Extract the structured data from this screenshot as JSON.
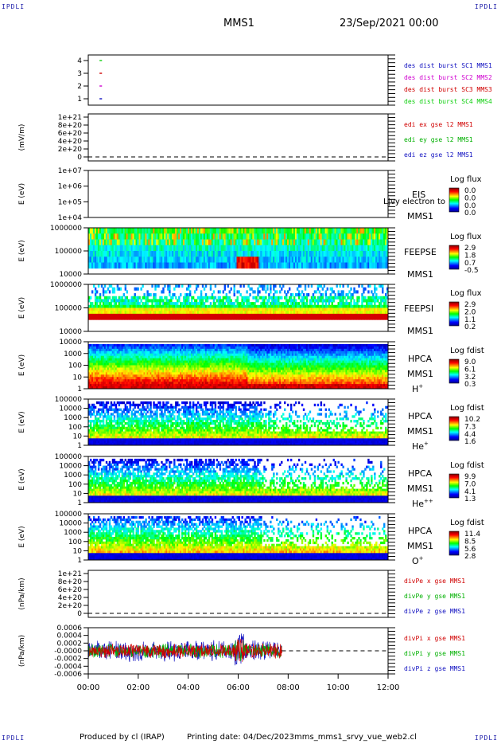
{
  "corners": {
    "top_left": "IPDLI",
    "top_right": "IPDLI",
    "bottom_left": "IPDLI",
    "bottom_right": "IPDLI"
  },
  "header": {
    "title": "MMS1",
    "datetime": "23/Sep/2021 00:00"
  },
  "footer": {
    "produced": "Produced by cl (IRAP)",
    "printing": "Printing date: 04/Dec/2023",
    "file": "mms_mms1_srvy_vue_web2.cl"
  },
  "colors": {
    "red": "#d00000",
    "green": "#00b000",
    "blue": "#1010c0",
    "magenta": "#d000d0",
    "lime": "#10d010"
  },
  "chart_data": [
    {
      "type": "line",
      "id": "sc-burst",
      "y_ticks": [
        "4",
        "3",
        "2",
        "1"
      ],
      "legend": [
        {
          "label": "des dist burst SC1 MMS1",
          "color": "#1010c0"
        },
        {
          "label": "des dist burst SC2 MMS2",
          "color": "#d000d0"
        },
        {
          "label": "des dist burst SC3 MMS3",
          "color": "#d00000"
        },
        {
          "label": "des dist burst SC4 MMS4",
          "color": "#10d010"
        }
      ],
      "series": [
        {
          "y": 4,
          "x_start": "00:27",
          "x_end": "00:33",
          "color": "#10d010"
        },
        {
          "y": 3,
          "x_start": "00:27",
          "x_end": "00:33",
          "color": "#d00000"
        },
        {
          "y": 2,
          "x_start": "00:27",
          "x_end": "00:33",
          "color": "#d000d0"
        },
        {
          "y": 1,
          "x_start": "00:27",
          "x_end": "00:33",
          "color": "#1010c0"
        }
      ]
    },
    {
      "type": "line",
      "id": "edi-e",
      "ylabel": "(mV/m)",
      "y_ticks": [
        "1e+21",
        "8e+20",
        "6e+20",
        "4e+20",
        "2e+20",
        "0"
      ],
      "dashed_zero": true,
      "legend": [
        {
          "label": "edi ex gse l2 MMS1",
          "color": "#d00000"
        },
        {
          "label": "edi ey gse l2 MMS1",
          "color": "#00b000"
        },
        {
          "label": "edi ez gse l2 MMS1",
          "color": "#1010c0"
        }
      ]
    },
    {
      "type": "heatmap",
      "id": "eis",
      "ylabel": "E (eV)",
      "y_ticks": [
        "1e+07",
        "1e+06",
        "1e+05",
        "1e+04"
      ],
      "side": [
        "EIS",
        "MMS1"
      ],
      "overlay_text": "L|vy electron to",
      "colorbar": {
        "title": "Log flux",
        "values": [
          "0.0",
          "0.0",
          "0.0",
          "0.0"
        ]
      }
    },
    {
      "type": "heatmap",
      "id": "feepse",
      "ylabel": "E (eV)",
      "y_ticks": [
        "1000000",
        "100000",
        "10000"
      ],
      "side": [
        "FEEPSE",
        "MMS1"
      ],
      "colorbar": {
        "title": "Log flux",
        "values": [
          "2.9",
          "1.8",
          "0.7",
          "-0.5"
        ]
      }
    },
    {
      "type": "heatmap",
      "id": "feepsi",
      "ylabel": "E (eV)",
      "y_ticks": [
        "1000000",
        "100000",
        "10000"
      ],
      "side": [
        "FEEPSI",
        "MMS1"
      ],
      "colorbar": {
        "title": "Log flux",
        "values": [
          "2.9",
          "2.0",
          "1.1",
          "0.2"
        ]
      }
    },
    {
      "type": "heatmap",
      "id": "hpca-h",
      "ylabel": "E (eV)",
      "y_ticks": [
        "10000",
        "1000",
        "100",
        "10",
        "1"
      ],
      "side": [
        "HPCA",
        "MMS1"
      ],
      "species": {
        "base": "H",
        "sup": "+"
      },
      "colorbar": {
        "title": "Log fdist",
        "values": [
          "9.0",
          "6.1",
          "3.2",
          "0.3"
        ]
      }
    },
    {
      "type": "heatmap",
      "id": "hpca-he",
      "ylabel": "E (eV)",
      "y_ticks": [
        "100000",
        "10000",
        "1000",
        "100",
        "10",
        "1"
      ],
      "side": [
        "HPCA",
        "MMS1"
      ],
      "species": {
        "base": "He",
        "sup": "+"
      },
      "colorbar": {
        "title": "Log fdist",
        "values": [
          "10.2",
          "7.3",
          "4.4",
          "1.6"
        ]
      }
    },
    {
      "type": "heatmap",
      "id": "hpca-hepp",
      "ylabel": "E (eV)",
      "y_ticks": [
        "100000",
        "10000",
        "1000",
        "100",
        "10",
        "1"
      ],
      "side": [
        "HPCA",
        "MMS1"
      ],
      "species": {
        "base": "He",
        "sup": "++"
      },
      "colorbar": {
        "title": "Log fdist",
        "values": [
          "9.9",
          "7.0",
          "4.1",
          "1.3"
        ]
      }
    },
    {
      "type": "heatmap",
      "id": "hpca-o",
      "ylabel": "E (eV)",
      "y_ticks": [
        "100000",
        "10000",
        "1000",
        "100",
        "10",
        "1"
      ],
      "side": [
        "HPCA",
        "MMS1"
      ],
      "species": {
        "base": "O",
        "sup": "+"
      },
      "colorbar": {
        "title": "Log fdist",
        "values": [
          "11.4",
          "8.5",
          "5.6",
          "2.8"
        ]
      }
    },
    {
      "type": "line",
      "id": "divpe",
      "ylabel": "(nPa/km)",
      "y_ticks": [
        "1e+21",
        "8e+20",
        "6e+20",
        "4e+20",
        "2e+20",
        "0"
      ],
      "dashed_zero": true,
      "legend": [
        {
          "label": "divPe x gse MMS1",
          "color": "#d00000"
        },
        {
          "label": "divPe y gse MMS1",
          "color": "#00b000"
        },
        {
          "label": "divPe z gse MMS1",
          "color": "#1010c0"
        }
      ]
    },
    {
      "type": "line",
      "id": "divpi",
      "ylabel": "(nPa/km)",
      "y_ticks": [
        "0.0006",
        "0.0004",
        "0.0002",
        "-0.0000",
        "-0.0002",
        "-0.0004",
        "-0.0006"
      ],
      "ylim": [
        -0.0007,
        0.0007
      ],
      "x_data_range": [
        "00:00",
        "07:45"
      ],
      "dashed_zero": true,
      "legend": [
        {
          "label": "divPi x gse MMS1",
          "color": "#d00000"
        },
        {
          "label": "divPi y gse MMS1",
          "color": "#00b000"
        },
        {
          "label": "divPi z gse MMS1",
          "color": "#1010c0"
        }
      ]
    }
  ],
  "x_axis": {
    "ticks": [
      "00:00",
      "02:00",
      "04:00",
      "06:00",
      "08:00",
      "10:00",
      "12:00"
    ],
    "range": [
      "00:00",
      "12:00"
    ]
  }
}
